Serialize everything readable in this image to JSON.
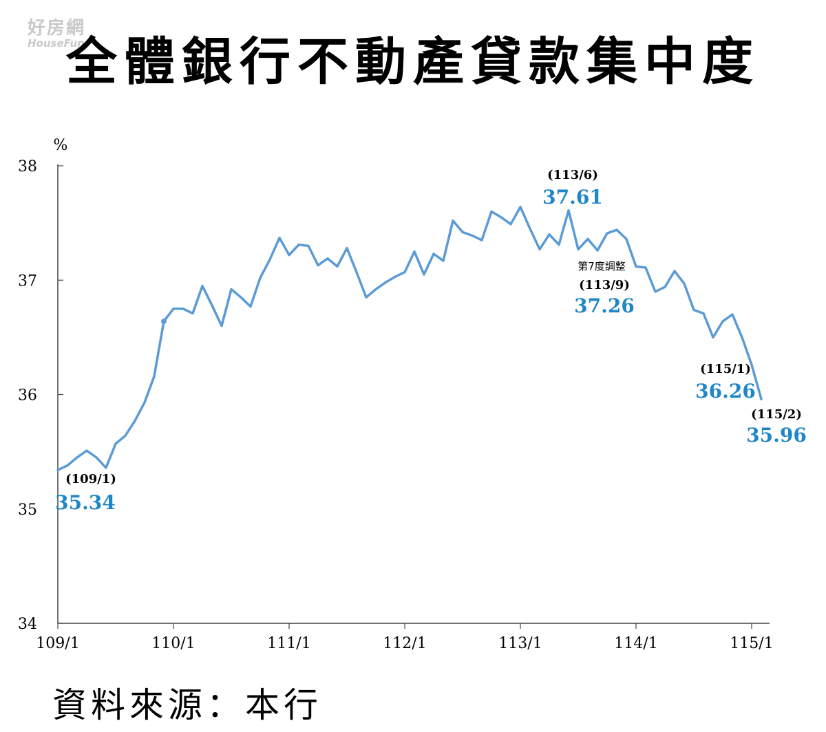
{
  "watermark": {
    "cn": "好房網",
    "en": "HouseFun"
  },
  "title": "全體銀行不動產貸款集中度",
  "source": "資料來源：本行",
  "colors": {
    "line": "#5b9bd5",
    "value_label": "#1f86c7",
    "axis": "#444444"
  },
  "chart_data": {
    "type": "line",
    "title": "全體銀行不動產貸款集中度",
    "ylabel": "%",
    "xlabel": "",
    "ylim": [
      34,
      38
    ],
    "yticks": [
      34,
      35,
      36,
      37,
      38
    ],
    "xlim": [
      0,
      61
    ],
    "xticks": [
      {
        "label": "109/1",
        "x": 0
      },
      {
        "label": "110/1",
        "x": 12
      },
      {
        "label": "111/1",
        "x": 24
      },
      {
        "label": "112/1",
        "x": 36
      },
      {
        "label": "113/1",
        "x": 48
      },
      {
        "label": "114/1",
        "x": 60
      },
      {
        "label": "115/1",
        "x": 72
      }
    ],
    "grid": false,
    "series": [
      {
        "values": [
          35.34,
          35.38,
          35.45,
          35.51,
          35.45,
          35.36,
          35.57,
          35.64,
          35.77,
          35.93,
          36.16,
          36.64,
          36.75,
          36.75,
          36.71,
          36.95,
          36.78,
          36.6,
          36.92,
          36.85,
          36.77,
          37.02,
          37.18,
          37.37,
          37.22,
          37.31,
          37.3,
          37.13,
          37.19,
          37.12,
          37.28,
          37.07,
          36.85,
          36.92,
          36.98,
          37.03,
          37.07,
          37.25,
          37.05,
          37.23,
          37.17,
          37.52,
          37.42,
          37.39,
          37.35,
          37.6,
          37.55,
          37.49,
          37.64,
          37.45,
          37.27,
          37.4,
          37.31,
          37.61,
          37.27,
          37.36,
          37.26,
          37.41,
          37.44,
          37.36,
          37.12,
          37.11,
          36.9,
          36.94,
          37.08,
          36.97,
          36.74,
          36.71,
          36.5,
          36.64,
          36.7,
          36.5,
          36.26,
          35.96
        ]
      }
    ],
    "annotations": [
      {
        "date": "(109/1)",
        "value": "35.34"
      },
      {
        "date": "(113/6)",
        "value": "37.61"
      },
      {
        "date": "(113/9)",
        "value": "37.26",
        "note": "第7度調整"
      },
      {
        "date": "(115/1)",
        "value": "36.26"
      },
      {
        "date": "(115/2)",
        "value": "35.96"
      }
    ]
  }
}
